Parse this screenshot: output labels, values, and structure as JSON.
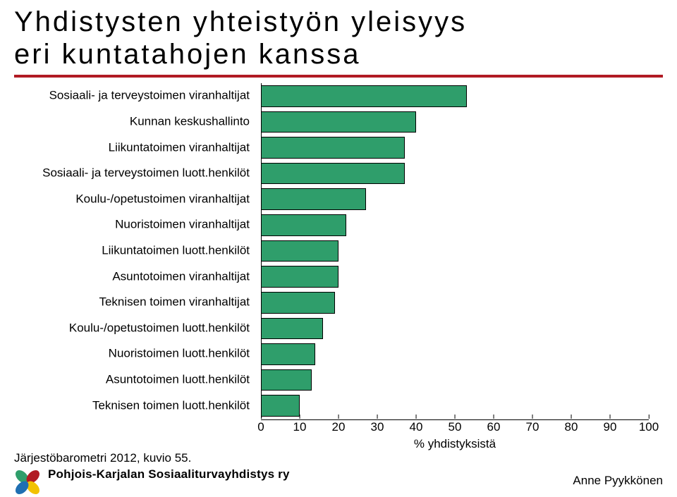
{
  "title_line1": "Yhdistysten yhteistyön yleisyys",
  "title_line2": "eri kuntatahojen kanssa",
  "chart": {
    "type": "bar-horizontal",
    "categories": [
      "Sosiaali- ja terveystoimen viranhaltijat",
      "Kunnan keskushallinto",
      "Liikuntatoimen viranhaltijat",
      "Sosiaali- ja terveystoimen luott.henkilöt",
      "Koulu-/opetustoimen viranhaltijat",
      "Nuoristoimen viranhaltijat",
      "Liikuntatoimen luott.henkilöt",
      "Asuntotoimen viranhaltijat",
      "Teknisen toimen viranhaltijat",
      "Koulu-/opetustoimen luott.henkilöt",
      "Nuoristoimen luott.henkilöt",
      "Asuntotoimen luott.henkilöt",
      "Teknisen toimen luott.henkilöt"
    ],
    "values": [
      53,
      40,
      37,
      37,
      27,
      22,
      20,
      20,
      19,
      16,
      14,
      13,
      10
    ],
    "bar_color": "#2f9e6b",
    "bar_border": "#000000",
    "xlim": [
      0,
      100
    ],
    "xtick_step": 10,
    "x_title": "% yhdistyksistä",
    "label_fontsize": 17,
    "title_fontsize": 40,
    "background_color": "#ffffff",
    "accent_color": "#b11b23"
  },
  "source": "Järjestöbarometri 2012, kuvio 55.",
  "org": "Pohjois-Karjalan Sosiaaliturvayhdistys ry",
  "author": "Anne Pyykkönen",
  "logo_colors": [
    "#2f9e6b",
    "#b11b23",
    "#f2c200",
    "#1f6fb2"
  ]
}
